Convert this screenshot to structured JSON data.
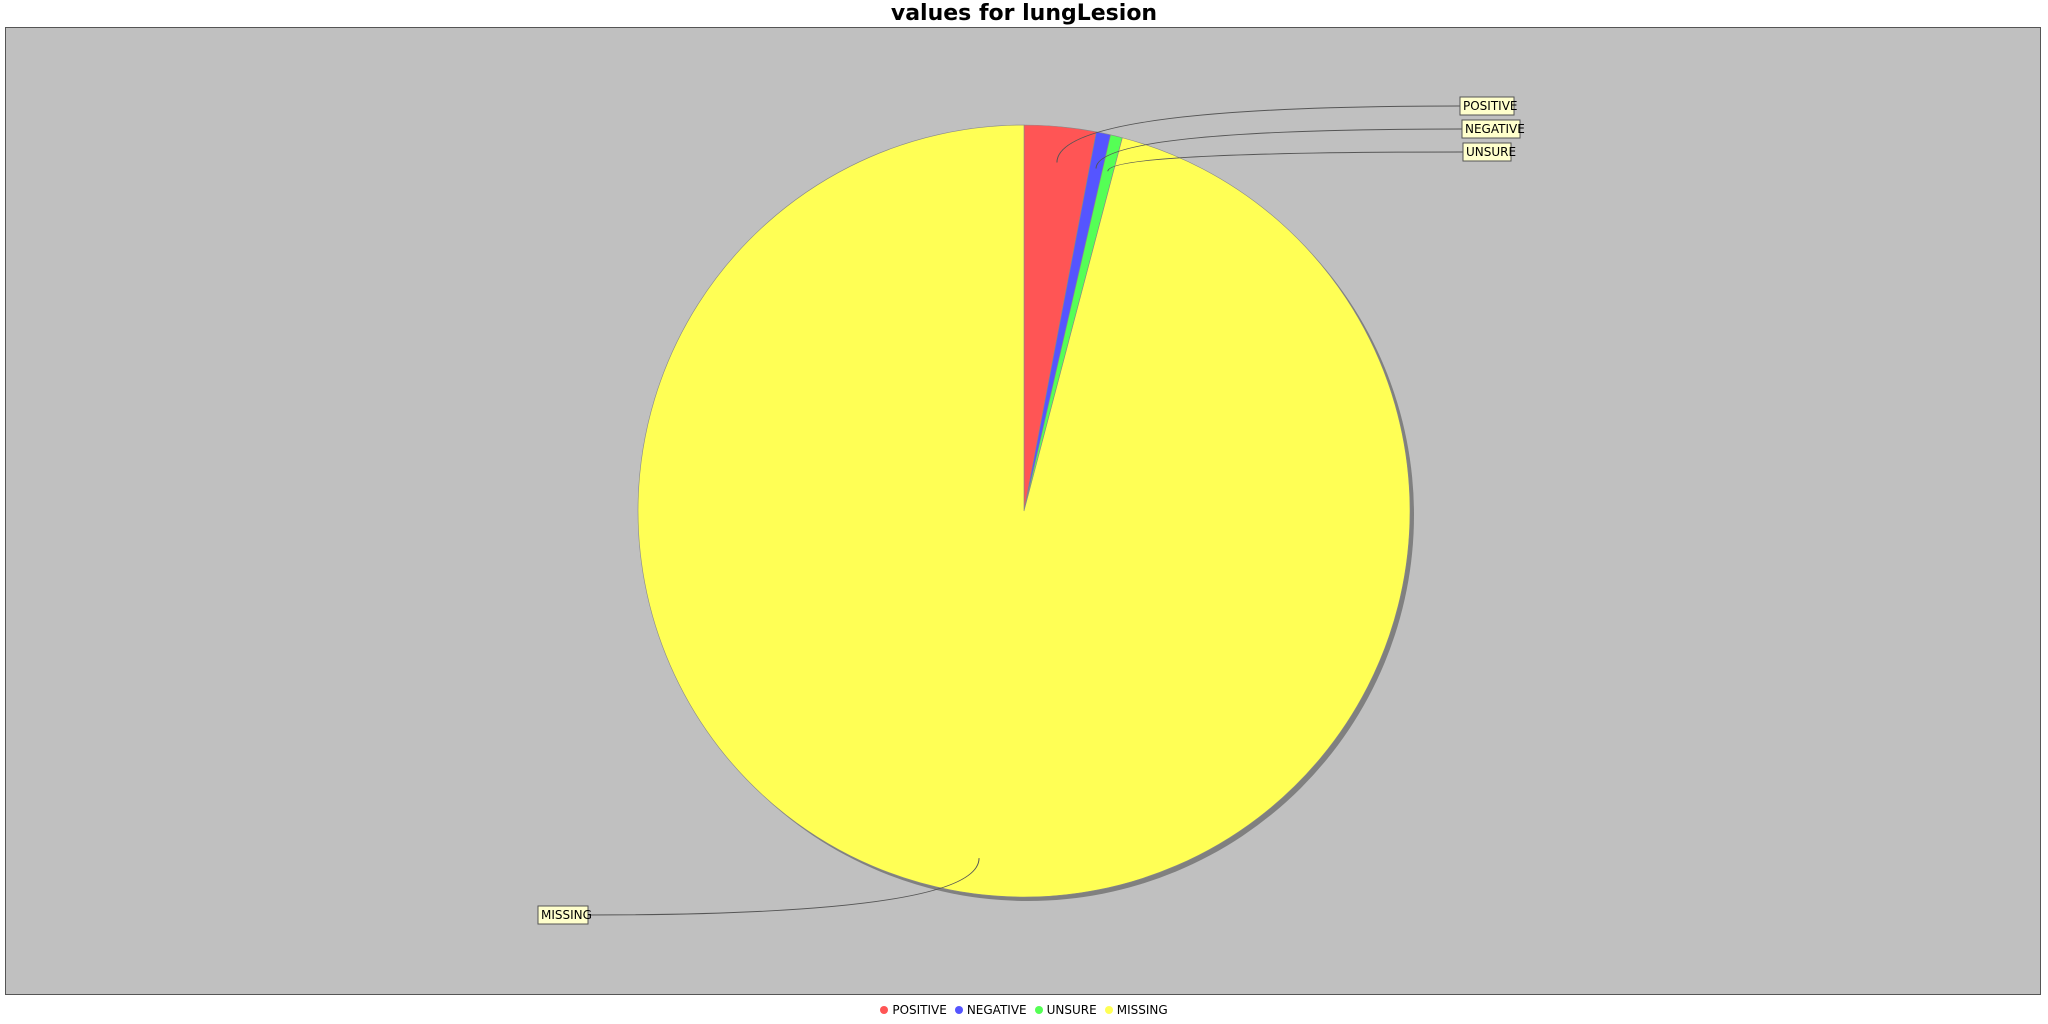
{
  "chart_data": {
    "type": "pie",
    "title": "values for lungLesion",
    "categories": [
      "POSITIVE",
      "NEGATIVE",
      "UNSURE",
      "MISSING"
    ],
    "values": [
      3.0,
      0.6,
      0.5,
      95.9
    ],
    "colors": [
      "#ff5555",
      "#5555ff",
      "#55ff55",
      "#ffff55"
    ],
    "legend_position": "bottom",
    "background_color": "#c0c0c0"
  }
}
